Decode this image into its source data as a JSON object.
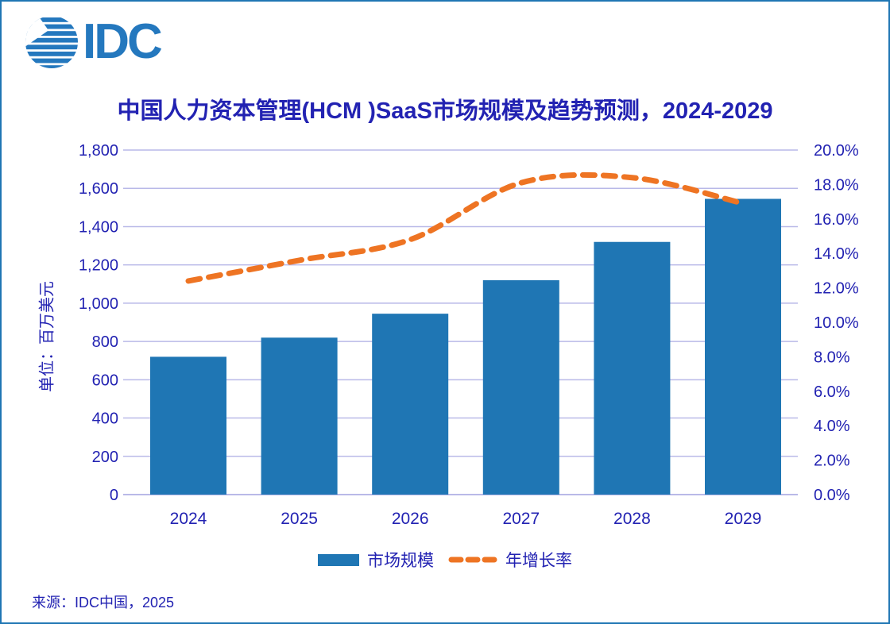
{
  "logo": {
    "text": "IDC"
  },
  "title": "中国人力资本管理(HCM )SaaS市场规模及趋势预测，2024-2029",
  "source": "来源：IDC中国，2025",
  "colors": {
    "bar": "#1F76B4",
    "line": "#EE7423",
    "text": "#2222B2",
    "grid": "#B9B9E8",
    "logo": "#2478BE",
    "border": "#1F76B4"
  },
  "chart_data": {
    "type": "bar",
    "combo": "bar+line",
    "title": "中国人力资本管理(HCM )SaaS市场规模及趋势预测，2024-2029",
    "categories": [
      "2024",
      "2025",
      "2026",
      "2027",
      "2028",
      "2029"
    ],
    "series": [
      {
        "name": "市场规模",
        "type": "bar",
        "axis": "left",
        "values": [
          720,
          820,
          945,
          1120,
          1320,
          1545
        ]
      },
      {
        "name": "年增长率",
        "type": "line",
        "line_style": "dashed",
        "axis": "right",
        "unit": "%",
        "values": [
          12.4,
          13.6,
          14.8,
          18.1,
          18.4,
          16.9
        ]
      }
    ],
    "left_axis": {
      "title": "单位：百万美元",
      "min": 0,
      "max": 1800,
      "step": 200,
      "tick_labels": [
        "0",
        "200",
        "400",
        "600",
        "800",
        "1,000",
        "1,200",
        "1,400",
        "1,600",
        "1,800"
      ]
    },
    "right_axis": {
      "min": 0,
      "max": 20,
      "step": 2,
      "tick_labels": [
        "0.0%",
        "2.0%",
        "4.0%",
        "6.0%",
        "8.0%",
        "10.0%",
        "12.0%",
        "14.0%",
        "16.0%",
        "18.0%",
        "20.0%"
      ]
    },
    "grid": true,
    "legend_position": "bottom",
    "legend": [
      "市场规模",
      "年增长率"
    ]
  }
}
